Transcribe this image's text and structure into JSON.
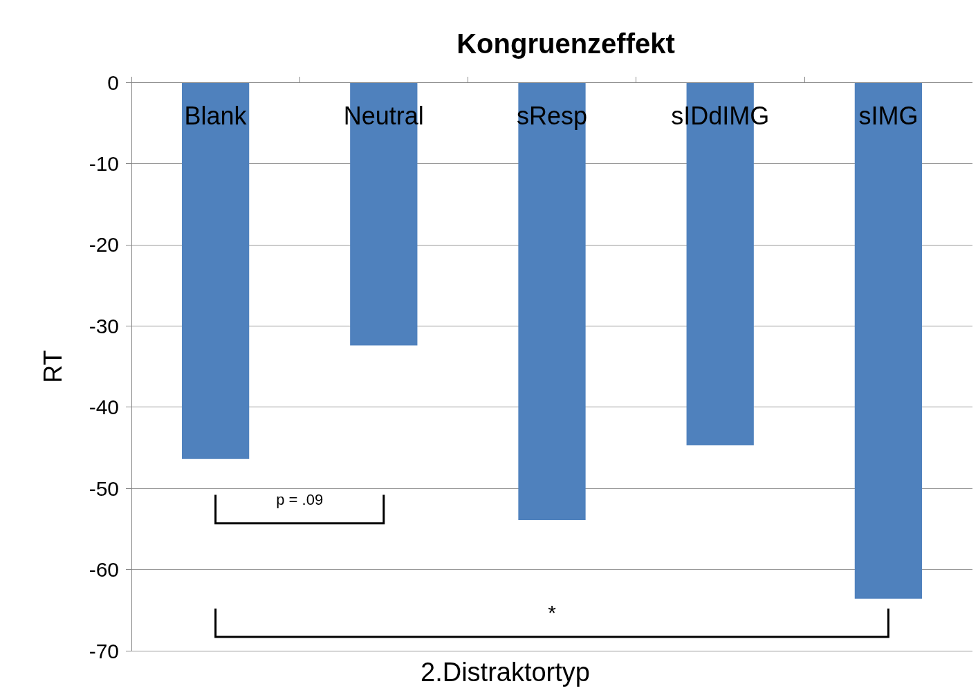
{
  "chart_data": {
    "type": "bar",
    "title": "Kongruenzeffekt",
    "xlabel": "2.Distraktortyp",
    "ylabel": "RT",
    "categories": [
      "Blank",
      "Neutral",
      "sResp",
      "sIDdIMG",
      "sIMG"
    ],
    "values": [
      -46.4,
      -32.4,
      -53.9,
      -44.7,
      -63.6
    ],
    "color": "#4f81bd",
    "ylim": [
      -70,
      0
    ],
    "yticks": [
      -70,
      -60,
      -50,
      -40,
      -30,
      -20,
      -10,
      0
    ],
    "grid": "y",
    "annotations": [
      "p = .09",
      "*"
    ]
  }
}
